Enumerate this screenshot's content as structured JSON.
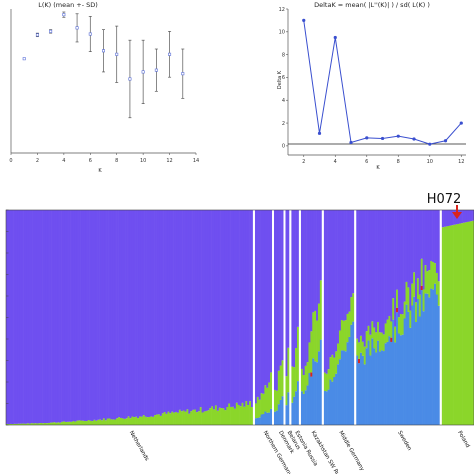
{
  "chart_data": [
    {
      "type": "scatter",
      "title": "L(K) (mean +- SD)",
      "xlabel": "K",
      "ylabel": "",
      "xlim": [
        0,
        14
      ],
      "xticks": [
        "0",
        "2",
        "4",
        "6",
        "8",
        "10",
        "12",
        "14"
      ],
      "grid": false,
      "points": [
        {
          "x": 1,
          "y": 73.5,
          "sd": 0
        },
        {
          "x": 2,
          "y": 87,
          "sd": 1
        },
        {
          "x": 3,
          "y": 89,
          "sd": 1
        },
        {
          "x": 4,
          "y": 98.5,
          "sd": 1.5
        },
        {
          "x": 5,
          "y": 91,
          "sd": 8
        },
        {
          "x": 6,
          "y": 87.5,
          "sd": 10
        },
        {
          "x": 7,
          "y": 78,
          "sd": 12
        },
        {
          "x": 8,
          "y": 76,
          "sd": 16
        },
        {
          "x": 9,
          "y": 62,
          "sd": 22
        },
        {
          "x": 10,
          "y": 66,
          "sd": 18
        },
        {
          "x": 11,
          "y": 67,
          "sd": 12
        },
        {
          "x": 12,
          "y": 76,
          "sd": 13
        },
        {
          "x": 13,
          "y": 65,
          "sd": 14
        }
      ]
    },
    {
      "type": "line",
      "title": "DeltaK = mean( |L''(K)| ) / sd( L(K) )",
      "xlabel": "K",
      "ylabel": "Delta K",
      "xlim": [
        1,
        12.3
      ],
      "ylim": [
        -0.8,
        12
      ],
      "xticks": [
        2,
        4,
        6,
        8,
        10,
        12
      ],
      "yticks": [
        0,
        2,
        4,
        6,
        8,
        10,
        12
      ],
      "grid": false,
      "x": [
        2,
        3,
        4,
        5,
        6,
        7,
        8,
        9,
        10,
        11,
        12
      ],
      "values": [
        11.0,
        1.1,
        9.5,
        0.3,
        0.7,
        0.65,
        0.85,
        0.6,
        0.15,
        0.45,
        2.0
      ],
      "color": "#3a4fcf"
    },
    {
      "type": "bar",
      "stacked": true,
      "ylim": [
        0,
        1
      ],
      "ylabel": "",
      "colors": {
        "green": "#8bd62a",
        "blue": "#4a8be6",
        "purple": "#6f4ff0",
        "red": "#d9241c"
      },
      "populations": [
        {
          "name": "Netherlands",
          "n": 130,
          "green": [
            0.005,
            0.1
          ]
        },
        {
          "name": "Northern Germany",
          "n": 9,
          "green": [
            0.08,
            0.15
          ],
          "blue": [
            0.03,
            0.07
          ]
        },
        {
          "name": "Denmark",
          "n": 5,
          "green": [
            0.1,
            0.2
          ],
          "blue": [
            0.06,
            0.12
          ]
        },
        {
          "name": "Belarus",
          "n": 2,
          "green": [
            0.15,
            0.22
          ],
          "blue": [
            0.1,
            0.16
          ]
        },
        {
          "name": "Estonia Russia",
          "n": 4,
          "green": [
            0.15,
            0.25
          ],
          "blue": [
            0.1,
            0.2
          ]
        },
        {
          "name": "Kazakhstan SW Russia",
          "n": 11,
          "green": [
            0.1,
            0.3
          ],
          "blue": [
            0.15,
            0.35
          ]
        },
        {
          "name": "Middle Germany",
          "n": 16,
          "green": [
            0.1,
            0.15
          ],
          "blue": [
            0.15,
            0.45
          ]
        },
        {
          "name": "Sweden",
          "n": 44,
          "green": [
            0.08,
            0.12
          ],
          "blue": [
            0.3,
            0.62
          ]
        },
        {
          "name": "Poland",
          "n": 17,
          "green": [
            0.92,
            0.95
          ]
        }
      ],
      "annotations": [
        "H072"
      ]
    }
  ]
}
